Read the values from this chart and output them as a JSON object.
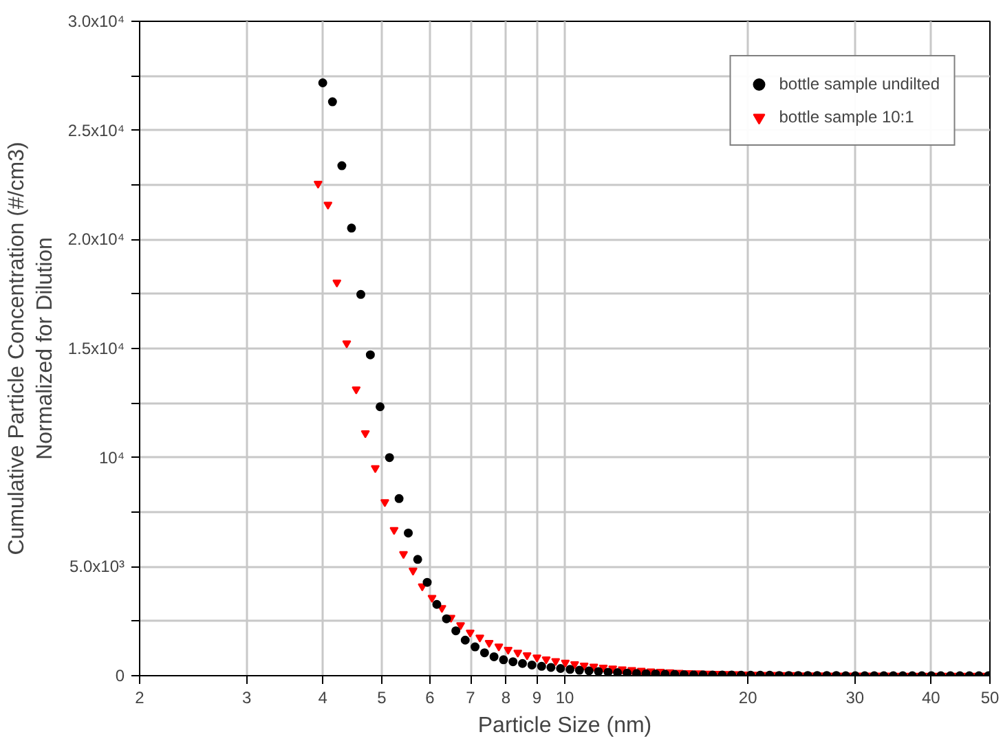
{
  "chart_data": {
    "type": "scatter",
    "xlabel": "Particle Size (nm)",
    "ylabel": "Cumulative Particle Concentration (#/cm3)\nNormalized for Dilution",
    "x": [
      4.0,
      4.15,
      4.3,
      4.46,
      4.62,
      4.79,
      4.97,
      5.15,
      5.34,
      5.53,
      5.73,
      5.94,
      6.16,
      6.39,
      6.62,
      6.86,
      7.12,
      7.38,
      7.65,
      7.93,
      8.22,
      8.52,
      8.83,
      9.16,
      9.49,
      9.84,
      10.2,
      10.57,
      10.96,
      11.36,
      11.78,
      12.21,
      12.66,
      13.12,
      13.6,
      14.1,
      14.62,
      15.16,
      15.71,
      16.29,
      16.88,
      17.5,
      18.15,
      18.81,
      19.5,
      20.21,
      20.96,
      21.72,
      22.52,
      23.35,
      24.2,
      25.09,
      26.0,
      26.96,
      27.95,
      28.97,
      30.03,
      31.13,
      32.27,
      33.46,
      34.68,
      35.95,
      37.27,
      38.64,
      40.05,
      41.52,
      43.05,
      44.62,
      46.26,
      47.96,
      49.71
    ],
    "series": [
      {
        "name": "bottle sample undilted",
        "color": "#000000",
        "marker": "circle",
        "values": [
          27180,
          26310,
          23380,
          20520,
          17480,
          14710,
          12330,
          10000,
          8120,
          6540,
          5330,
          4280,
          3270,
          2610,
          2060,
          1630,
          1320,
          1050,
          870,
          730,
          640,
          560,
          490,
          430,
          380,
          330,
          290,
          250,
          220,
          190,
          160,
          140,
          120,
          100,
          90,
          80,
          70,
          60,
          50,
          40,
          40,
          30,
          30,
          30,
          20,
          20,
          20,
          20,
          10,
          10,
          10,
          10,
          10,
          10,
          10,
          0,
          0,
          0,
          0,
          0,
          0,
          0,
          0,
          0,
          0,
          0,
          0,
          0,
          0,
          0,
          0
        ]
      },
      {
        "name": "bottle sample 10:1",
        "color": "#ff0000",
        "marker": "triangle",
        "x": [
          3.93,
          4.08,
          4.22,
          4.38,
          4.54,
          4.7,
          4.88,
          5.06,
          5.24,
          5.43,
          5.63,
          5.83,
          6.05,
          6.28,
          6.5,
          6.74,
          6.99,
          7.25,
          7.51,
          7.79,
          8.07,
          8.37,
          8.67,
          9.0,
          9.32,
          9.66,
          10.02,
          10.38,
          10.76,
          11.16,
          11.57,
          11.99,
          12.43,
          12.89,
          13.36,
          13.85,
          14.36,
          14.89,
          15.43,
          16.0,
          16.58,
          17.19,
          17.83,
          18.47,
          19.15,
          19.85,
          20.59,
          21.33,
          22.12,
          22.93,
          23.77,
          24.64,
          25.54,
          26.48,
          27.45,
          28.45,
          29.49,
          30.57,
          31.69,
          32.86,
          34.06,
          35.31,
          36.6,
          37.95,
          39.33,
          40.78,
          42.28,
          43.82,
          45.43,
          47.1,
          48.82
        ],
        "values": [
          22560,
          21600,
          18030,
          15240,
          13130,
          11120,
          9520,
          7960,
          6680,
          5580,
          4820,
          4100,
          3570,
          3110,
          2660,
          2320,
          1980,
          1750,
          1510,
          1340,
          1190,
          1060,
          940,
          840,
          750,
          670,
          600,
          530,
          470,
          420,
          370,
          330,
          290,
          260,
          230,
          200,
          180,
          160,
          140,
          120,
          110,
          100,
          90,
          80,
          70,
          60,
          50,
          40,
          40,
          30,
          30,
          20,
          20,
          20,
          10,
          10,
          10,
          10,
          10,
          10,
          10,
          0,
          0,
          0,
          0,
          0,
          0,
          0,
          0,
          0,
          0
        ]
      }
    ],
    "log": "x",
    "xlim": [
      2,
      50
    ],
    "xticks": [
      2,
      3,
      4,
      5,
      6,
      7,
      8,
      9,
      10,
      20,
      30,
      40,
      50
    ],
    "ylim": [
      0,
      30000
    ],
    "yticks": [
      {
        "value": 0,
        "label": "0"
      },
      {
        "value": 2500,
        "label": null
      },
      {
        "value": 5000,
        "label": "5.0x10³"
      },
      {
        "value": 7500,
        "label": null
      },
      {
        "value": 10000,
        "label": "10⁴"
      },
      {
        "value": 12500,
        "label": null
      },
      {
        "value": 15000,
        "label": "1.5x10⁴"
      },
      {
        "value": 17500,
        "label": null
      },
      {
        "value": 20000,
        "label": "2.0x10⁴"
      },
      {
        "value": 22500,
        "label": null
      },
      {
        "value": 25000,
        "label": "2.5x10⁴"
      },
      {
        "value": 27500,
        "label": null
      },
      {
        "value": 30000,
        "label": "3.0x10⁴"
      }
    ],
    "grid": true,
    "legend": "top right"
  }
}
